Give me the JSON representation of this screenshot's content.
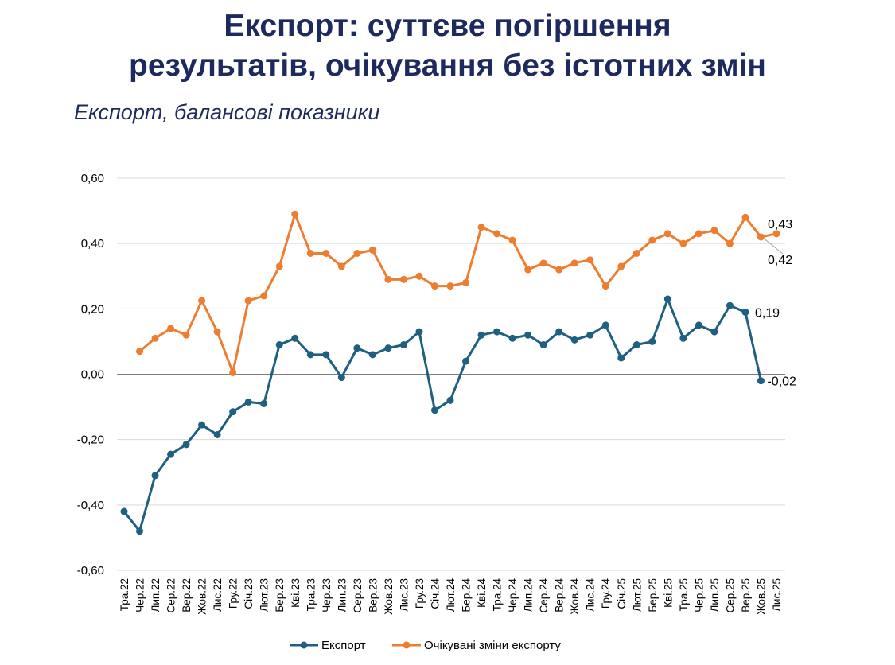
{
  "title_line1": "Експорт: суттєве погіршення",
  "title_line2": "результатів, очікування без істотних змін",
  "subtitle": "Експорт, балансові показники",
  "chart_data": {
    "type": "line",
    "title": "Експорт, балансові показники",
    "ylim": [
      -0.6,
      0.6
    ],
    "yticks": [
      "0,60",
      "0,40",
      "0,20",
      "0,00",
      "-0,20",
      "-0,40",
      "-0,60"
    ],
    "ytick_values": [
      0.6,
      0.4,
      0.2,
      0.0,
      -0.2,
      -0.4,
      -0.6
    ],
    "grid": true,
    "legend": "bottom",
    "categories": [
      "Тра.22",
      "Чер.22",
      "Лип.22",
      "Сер.22",
      "Вер.22",
      "Жов.22",
      "Лис.22",
      "Гру.22",
      "Січ.23",
      "Лют.23",
      "Бер.23",
      "Кві.23",
      "Тра.23",
      "Чер.23",
      "Лип.23",
      "Сер.23",
      "Вер.23",
      "Жов.23",
      "Лис.23",
      "Гру.23",
      "Січ.24",
      "Лют.24",
      "Бер.24",
      "Кві.24",
      "Тра.24",
      "Чер.24",
      "Лип.24",
      "Сер.24",
      "Вер.24",
      "Жов.24",
      "Лис.24",
      "Гру.24",
      "Січ.25",
      "Лют.25",
      "Бер.25",
      "Кві.25",
      "Тра.25",
      "Чер.25",
      "Лип.25",
      "Сер.25",
      "Вер.25",
      "Жов.25",
      "Лис.25"
    ],
    "series": [
      {
        "name": "Експорт",
        "color": "#1f5f7f",
        "values": [
          -0.42,
          -0.48,
          -0.31,
          -0.245,
          -0.215,
          -0.155,
          -0.185,
          -0.115,
          -0.085,
          -0.09,
          0.09,
          0.11,
          0.06,
          0.06,
          -0.01,
          0.08,
          0.06,
          0.08,
          0.09,
          0.13,
          -0.11,
          -0.08,
          0.04,
          0.12,
          0.13,
          0.11,
          0.12,
          0.09,
          0.13,
          0.105,
          0.12,
          0.15,
          0.05,
          0.09,
          0.1,
          0.23,
          0.11,
          0.15,
          0.13,
          0.21,
          0.19,
          -0.02,
          null
        ],
        "labels": [
          {
            "index": 40,
            "text": "0,19"
          },
          {
            "index": 41,
            "text": "-0,02"
          }
        ]
      },
      {
        "name": "Очікувані зміни експорту",
        "color": "#ed7d31",
        "values": [
          null,
          0.07,
          0.11,
          0.14,
          0.12,
          0.225,
          0.13,
          0.005,
          0.225,
          0.24,
          0.33,
          0.49,
          0.37,
          0.37,
          0.33,
          0.37,
          0.38,
          0.29,
          0.29,
          0.3,
          0.27,
          0.27,
          0.28,
          0.45,
          0.43,
          0.41,
          0.32,
          0.34,
          0.32,
          0.34,
          0.35,
          0.27,
          0.33,
          0.37,
          0.41,
          0.43,
          0.4,
          0.43,
          0.44,
          0.4,
          0.48,
          0.42,
          0.43
        ],
        "labels": [
          {
            "index": 42,
            "text": "0,43"
          },
          {
            "index": 41,
            "text": "0,42"
          }
        ]
      }
    ]
  }
}
